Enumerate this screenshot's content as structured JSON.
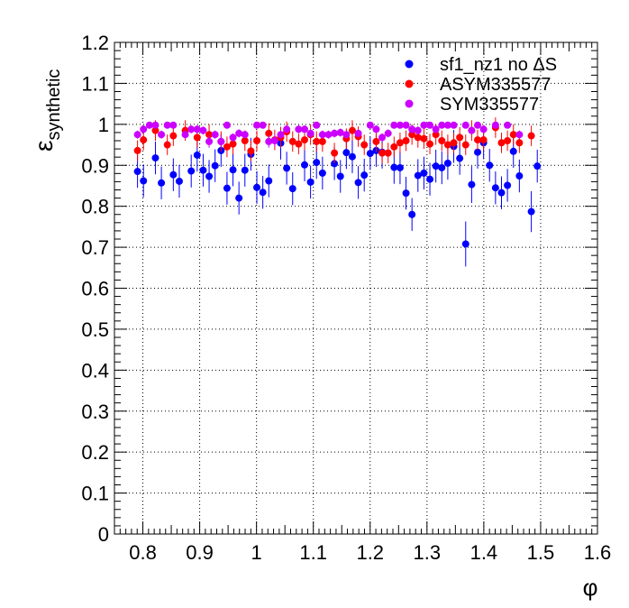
{
  "chart_data": {
    "type": "scatter",
    "title": "",
    "xlabel": "φ",
    "ylabel_main": "ε",
    "ylabel_sub": "synthetic",
    "xlim": [
      0.75,
      1.6
    ],
    "ylim": [
      0,
      1.2
    ],
    "xticks": [
      0.8,
      0.9,
      1.0,
      1.1,
      1.2,
      1.3,
      1.4,
      1.5,
      1.6
    ],
    "xtick_labels": [
      "0.8",
      "0.9",
      "1",
      "1.1",
      "1.2",
      "1.3",
      "1.4",
      "1.5",
      "1.6"
    ],
    "yticks": [
      0,
      0.1,
      0.2,
      0.3,
      0.4,
      0.5,
      0.6,
      0.7,
      0.8,
      0.9,
      1.0,
      1.1,
      1.2
    ],
    "ytick_labels": [
      "0",
      "0.1",
      "0.2",
      "0.3",
      "0.4",
      "0.5",
      "0.6",
      "0.7",
      "0.8",
      "0.9",
      "1",
      "1.1",
      "1.2"
    ],
    "grid": true,
    "legend_position": "top-right",
    "x": [
      0.7906,
      0.8011,
      0.8116,
      0.8221,
      0.8326,
      0.8431,
      0.8536,
      0.8641,
      0.8746,
      0.8851,
      0.8956,
      0.9061,
      0.9166,
      0.9271,
      0.9376,
      0.9481,
      0.9586,
      0.9691,
      0.9796,
      0.9901,
      1.0006,
      1.0111,
      1.0216,
      1.0321,
      1.0426,
      1.0531,
      1.0636,
      1.0741,
      1.0846,
      1.0951,
      1.1056,
      1.1161,
      1.1266,
      1.1371,
      1.1476,
      1.1581,
      1.1686,
      1.1791,
      1.1896,
      1.2001,
      1.2106,
      1.2211,
      1.2316,
      1.2421,
      1.2526,
      1.2631,
      1.2736,
      1.2841,
      1.2946,
      1.3051,
      1.3156,
      1.3261,
      1.3366,
      1.3471,
      1.3576,
      1.3681,
      1.3786,
      1.3891,
      1.3996,
      1.4101,
      1.4206,
      1.4311,
      1.4416,
      1.4521,
      1.4626,
      1.4731,
      1.4836,
      1.4941,
      1.5046,
      1.5151,
      1.5256,
      1.5361,
      1.5466,
      1.5571
    ],
    "series": [
      {
        "name": "sf1_nz1 no ΔS",
        "color": "#0000ff",
        "y": [
          0.885,
          0.862,
          0.918,
          0.857,
          0.877,
          0.861,
          0.886,
          0.925,
          0.888,
          0.873,
          0.899,
          0.936,
          0.844,
          0.889,
          0.82,
          0.888,
          0.927,
          0.846,
          0.834,
          0.862,
          0.954,
          0.893,
          0.843,
          0.901,
          0.859,
          0.907,
          0.881,
          0.904,
          0.873,
          0.931,
          0.921,
          0.858,
          0.876,
          0.929,
          0.936,
          0.932,
          0.895,
          0.894,
          0.832,
          0.78,
          0.875,
          0.881,
          0.866,
          0.898,
          0.894,
          0.905,
          0.946,
          0.917,
          0.708,
          0.853,
          0.932,
          0.955,
          0.9,
          0.845,
          0.833,
          0.851,
          0.934,
          0.874,
          0.787,
          0.898
        ],
        "err": [
          0.04,
          0.04,
          0.04,
          0.04,
          0.04,
          0.04,
          0.04,
          0.04,
          0.04,
          0.04,
          0.04,
          0.04,
          0.04,
          0.04,
          0.04,
          0.04,
          0.04,
          0.04,
          0.04,
          0.04,
          0.04,
          0.04,
          0.04,
          0.04,
          0.04,
          0.04,
          0.04,
          0.04,
          0.04,
          0.04,
          0.04,
          0.04,
          0.04,
          0.04,
          0.04,
          0.04,
          0.04,
          0.04,
          0.04,
          0.04,
          0.04,
          0.04,
          0.04,
          0.04,
          0.04,
          0.04,
          0.04,
          0.04,
          0.055,
          0.045,
          0.04,
          0.04,
          0.04,
          0.04,
          0.04,
          0.04,
          0.04,
          0.04,
          0.05,
          0.04
        ],
        "x_index": [
          0,
          1,
          3,
          4,
          6,
          7,
          9,
          10,
          11,
          12,
          13,
          14,
          15,
          16,
          17,
          18,
          19,
          20,
          21,
          22,
          24,
          25,
          26,
          28,
          29,
          30,
          31,
          33,
          34,
          35,
          36,
          37,
          38,
          39,
          40,
          41,
          43,
          44,
          45,
          46,
          47,
          48,
          49,
          50,
          51,
          52,
          53,
          54,
          55,
          56,
          57,
          58,
          59,
          60,
          61,
          62,
          63,
          64,
          66,
          67
        ]
      },
      {
        "name": "ASYM335577",
        "color": "#ff0000",
        "y": [
          0.936,
          0.962,
          0.985,
          0.95,
          0.972,
          0.985,
          0.968,
          0.975,
          0.958,
          0.945,
          0.952,
          0.96,
          0.935,
          0.96,
          0.978,
          0.962,
          0.968,
          0.982,
          0.958,
          0.952,
          0.962,
          0.975,
          0.958,
          0.958,
          0.93,
          0.965,
          0.985,
          0.97,
          0.95,
          0.958,
          0.93,
          0.93,
          0.945,
          0.955,
          0.96,
          0.975,
          0.968,
          0.965,
          0.952,
          0.975,
          0.96,
          0.95,
          0.955,
          0.968,
          0.95,
          0.985,
          0.962,
          0.962,
          0.992,
          0.955,
          0.96,
          0.975,
          0.955,
          0.972
        ],
        "err": [
          0.025,
          0.025,
          0.025,
          0.025,
          0.025,
          0.025,
          0.025,
          0.025,
          0.025,
          0.025,
          0.025,
          0.025,
          0.025,
          0.025,
          0.025,
          0.025,
          0.025,
          0.025,
          0.025,
          0.025,
          0.025,
          0.025,
          0.025,
          0.025,
          0.025,
          0.025,
          0.025,
          0.025,
          0.025,
          0.025,
          0.025,
          0.025,
          0.025,
          0.025,
          0.025,
          0.025,
          0.025,
          0.025,
          0.025,
          0.025,
          0.025,
          0.025,
          0.025,
          0.025,
          0.025,
          0.025,
          0.025,
          0.025,
          0.025,
          0.025,
          0.025,
          0.025,
          0.025,
          0.025
        ],
        "x_index": [
          0,
          1,
          3,
          5,
          6,
          8,
          10,
          12,
          14,
          15,
          16,
          18,
          19,
          20,
          22,
          23,
          24,
          25,
          26,
          27,
          28,
          29,
          30,
          31,
          33,
          35,
          36,
          37,
          38,
          40,
          41,
          42,
          43,
          44,
          45,
          46,
          47,
          48,
          49,
          50,
          51,
          52,
          53,
          54,
          55,
          56,
          57,
          58,
          60,
          61,
          62,
          63,
          64,
          66
        ]
      },
      {
        "name": "SYM335577",
        "color": "#cc00ff",
        "y": [
          0.975,
          0.988,
          0.998,
          0.998,
          0.975,
          0.998,
          0.998,
          0.975,
          0.988,
          0.988,
          0.985,
          0.958,
          0.975,
          0.958,
          0.998,
          0.968,
          0.978,
          0.975,
          0.998,
          0.998,
          0.958,
          0.96,
          0.975,
          0.988,
          0.988,
          0.988,
          0.978,
          0.998,
          0.975,
          0.975,
          0.978,
          0.98,
          0.975,
          0.978,
          0.998,
          0.988,
          0.968,
          0.978,
          0.998,
          0.998,
          0.998,
          0.988,
          0.985,
          0.998,
          0.998,
          0.988,
          0.998,
          0.998,
          0.998,
          0.998,
          0.985,
          0.998,
          0.988,
          0.998,
          0.998,
          0.975
        ],
        "err": [
          0.01,
          0.01,
          0.005,
          0.005,
          0.01,
          0.005,
          0.005,
          0.01,
          0.01,
          0.01,
          0.01,
          0.015,
          0.01,
          0.015,
          0.005,
          0.01,
          0.01,
          0.01,
          0.005,
          0.005,
          0.015,
          0.015,
          0.01,
          0.01,
          0.01,
          0.01,
          0.01,
          0.005,
          0.01,
          0.01,
          0.01,
          0.01,
          0.01,
          0.01,
          0.005,
          0.01,
          0.01,
          0.01,
          0.005,
          0.005,
          0.005,
          0.01,
          0.01,
          0.005,
          0.005,
          0.01,
          0.005,
          0.005,
          0.005,
          0.005,
          0.01,
          0.005,
          0.01,
          0.005,
          0.005,
          0.01
        ],
        "x_index": [
          0,
          1,
          2,
          3,
          4,
          5,
          6,
          8,
          9,
          10,
          11,
          12,
          13,
          14,
          15,
          16,
          17,
          18,
          20,
          21,
          22,
          23,
          24,
          25,
          27,
          28,
          29,
          30,
          31,
          32,
          33,
          34,
          35,
          37,
          39,
          40,
          41,
          42,
          43,
          44,
          45,
          46,
          47,
          48,
          49,
          50,
          51,
          52,
          53,
          55,
          56,
          57,
          58,
          60,
          62,
          64
        ]
      }
    ]
  }
}
